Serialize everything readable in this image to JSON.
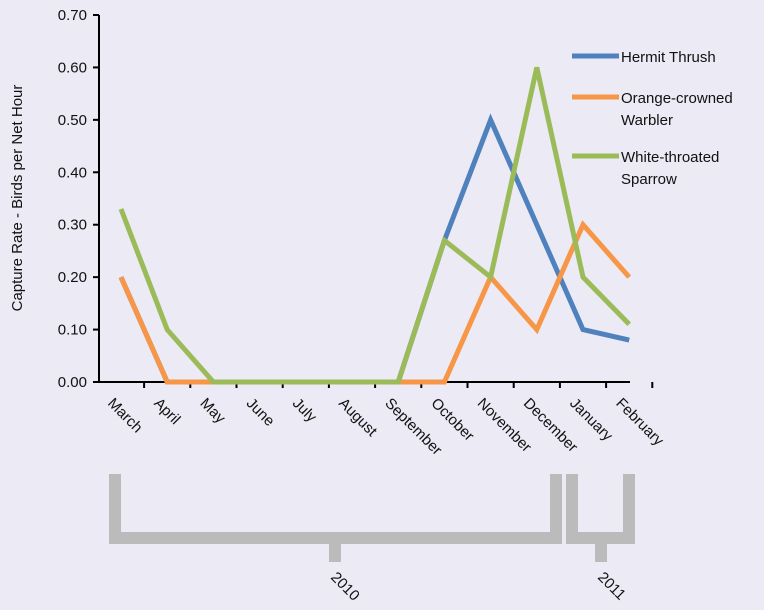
{
  "chart_data": {
    "type": "line",
    "title": "",
    "xlabel": "",
    "ylabel": "Capture Rate - Birds per Net Hour",
    "categories": [
      "March",
      "April",
      "May",
      "June",
      "July",
      "August",
      "September",
      "October",
      "November",
      "December",
      "January",
      "February"
    ],
    "ylim": [
      0,
      0.7
    ],
    "yticks": [
      "0.00",
      "0.10",
      "0.20",
      "0.30",
      "0.40",
      "0.50",
      "0.60",
      "0.70"
    ],
    "grid": false,
    "legend_position": "right",
    "series": [
      {
        "name": "Hermit Thrush",
        "color": "#4F81BD",
        "values": [
          0.2,
          0.0,
          0.0,
          0.0,
          0.0,
          0.0,
          0.0,
          0.27,
          0.5,
          0.3,
          0.1,
          0.08
        ]
      },
      {
        "name": "Orange-crowned Warbler",
        "color": "#F79646",
        "values": [
          0.2,
          0.0,
          0.0,
          0.0,
          0.0,
          0.0,
          0.0,
          0.0,
          0.2,
          0.1,
          0.3,
          0.2
        ]
      },
      {
        "name": "White-throated Sparrow",
        "color": "#9BBB59",
        "values": [
          0.33,
          0.1,
          0.0,
          0.0,
          0.0,
          0.0,
          0.0,
          0.27,
          0.2,
          0.6,
          0.2,
          0.11
        ]
      }
    ],
    "year_groups": [
      {
        "label": "2010",
        "from": "March",
        "to": "December"
      },
      {
        "label": "2011",
        "from": "January",
        "to": "February"
      }
    ],
    "bracket_color": "#BBBBBB"
  }
}
